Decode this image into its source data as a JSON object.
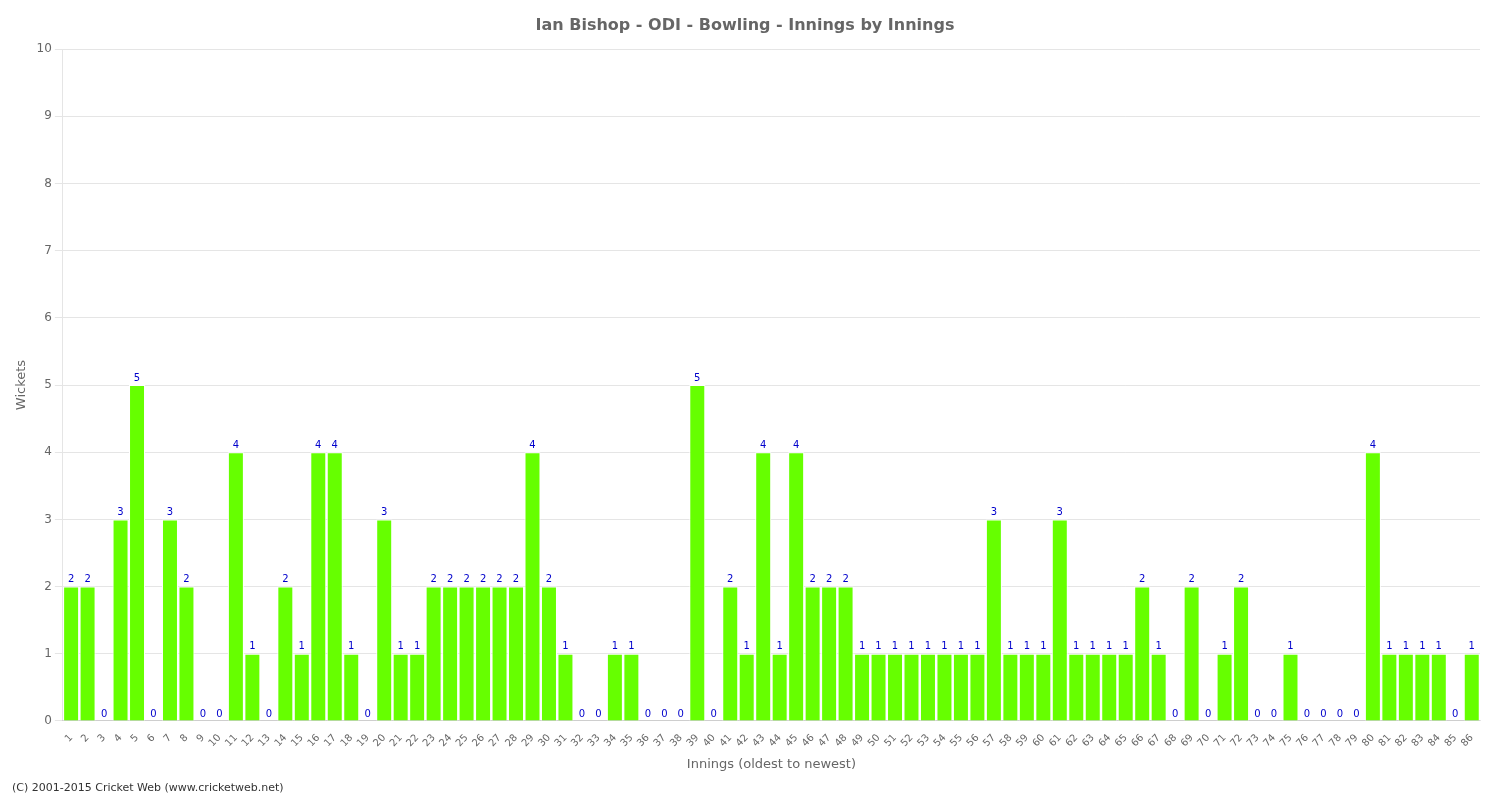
{
  "chart_data": {
    "type": "bar",
    "title": "Ian Bishop - ODI - Bowling - Innings by Innings",
    "x_label": "Innings (oldest to newest)",
    "y_label": "Wickets",
    "categories": [
      "1",
      "2",
      "3",
      "4",
      "5",
      "6",
      "7",
      "8",
      "9",
      "10",
      "11",
      "12",
      "13",
      "14",
      "15",
      "16",
      "17",
      "18",
      "19",
      "20",
      "21",
      "22",
      "23",
      "24",
      "25",
      "26",
      "27",
      "28",
      "29",
      "30",
      "31",
      "32",
      "33",
      "34",
      "35",
      "36",
      "37",
      "38",
      "39",
      "40",
      "41",
      "42",
      "43",
      "44",
      "45",
      "46",
      "47",
      "48",
      "49",
      "50",
      "51",
      "52",
      "53",
      "54",
      "55",
      "56",
      "57",
      "58",
      "59",
      "60",
      "61",
      "62",
      "63",
      "64",
      "65",
      "66",
      "67",
      "68",
      "69",
      "70",
      "71",
      "72",
      "73",
      "74",
      "75",
      "76",
      "77",
      "78",
      "79",
      "80",
      "81",
      "82",
      "83",
      "84",
      "85",
      "86"
    ],
    "values": [
      2,
      2,
      0,
      3,
      5,
      0,
      3,
      2,
      0,
      0,
      4,
      1,
      0,
      2,
      1,
      4,
      4,
      1,
      0,
      3,
      1,
      1,
      2,
      2,
      2,
      2,
      2,
      2,
      4,
      2,
      1,
      0,
      0,
      1,
      1,
      0,
      0,
      0,
      5,
      0,
      2,
      1,
      4,
      1,
      4,
      2,
      2,
      2,
      1,
      1,
      1,
      1,
      1,
      1,
      1,
      1,
      3,
      1,
      1,
      1,
      3,
      1,
      1,
      1,
      1,
      2,
      1,
      0,
      2,
      0,
      1,
      2,
      0,
      0,
      1,
      0,
      0,
      0,
      0,
      4,
      1,
      1,
      1,
      1,
      0,
      1
    ],
    "color": "#66ff00",
    "ylim": [
      0,
      10
    ],
    "yticks": [
      0,
      1,
      2,
      3,
      4,
      5,
      6,
      7,
      8,
      9,
      10
    ],
    "grid": true,
    "data_labels": true,
    "annotations": [
      "(C) 2001-2015 Cricket Web (www.cricketweb.net)"
    ]
  }
}
